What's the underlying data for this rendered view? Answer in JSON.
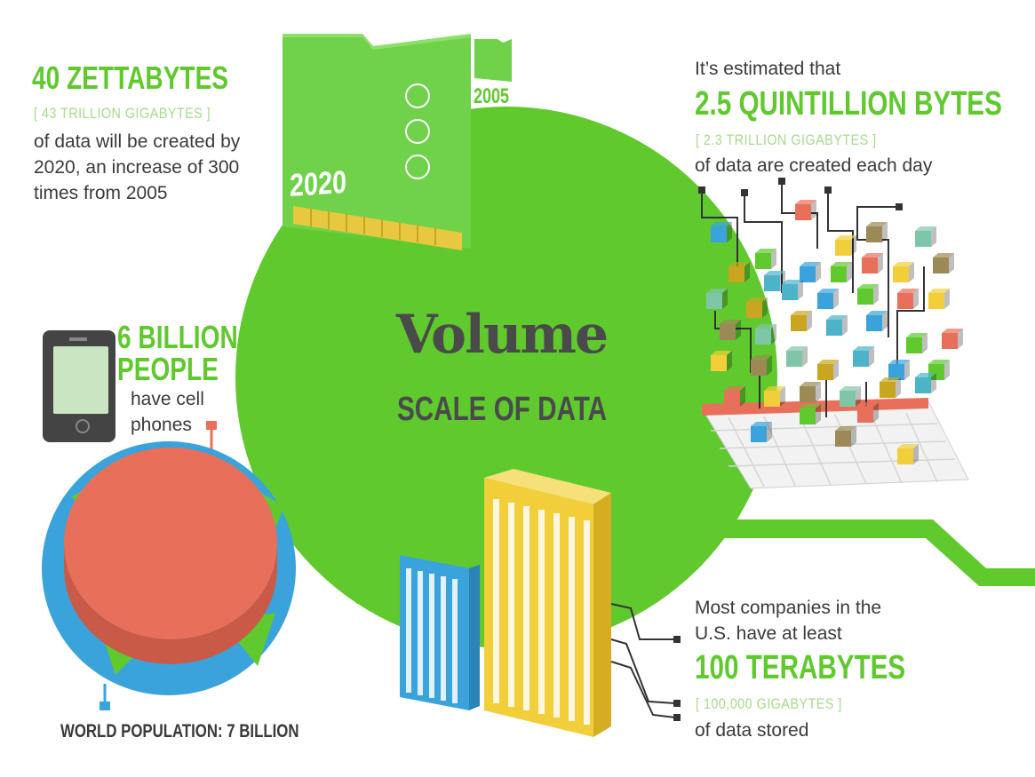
{
  "center": {
    "title": "Volume",
    "subtitle": "SCALE OF DATA"
  },
  "cards": {
    "large_year": "2020",
    "small_year": "2005"
  },
  "zettabytes": {
    "headline": "40 ZETTABYTES",
    "sub": "[ 43 TRILLION GIGABYTES ]",
    "lines": [
      "of data will be created by",
      "2020, an increase of 300",
      "times from 2005"
    ]
  },
  "daily": {
    "intro": "It’s estimated that",
    "headline": "2.5 QUINTILLION BYTES",
    "sub": "[ 2.3 TRILLION GIGABYTES ]",
    "line": "of data are created each day"
  },
  "phones": {
    "headline_1": "6 BILLION",
    "headline_2": "PEOPLE",
    "lines": [
      "have cell",
      "phones"
    ]
  },
  "population": {
    "label": "WORLD POPULATION: 7 BILLION"
  },
  "companies": {
    "lines": [
      "Most companies in the",
      "U.S. have at least"
    ],
    "headline": "100 TERABYTES",
    "sub": "[ 100,000 GIGABYTES ]",
    "line": "of data stored"
  },
  "colors": {
    "green": "#5fc92e",
    "light_green": "#a9d98e",
    "salmon": "#e8705a",
    "blue": "#3aa3dc",
    "yellow": "#f2cf3a",
    "dark": "#4a4a4a"
  }
}
